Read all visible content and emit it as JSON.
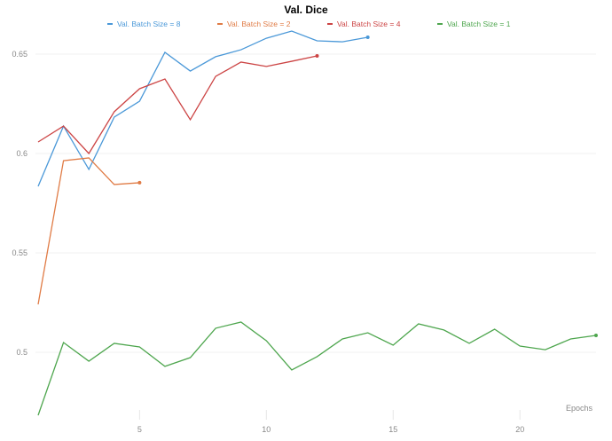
{
  "chart_data": {
    "type": "line",
    "title": "Val. Dice",
    "xlabel": "Epochs",
    "ylabel": "",
    "xlim": [
      1,
      23
    ],
    "ylim": [
      0.468,
      0.665
    ],
    "xticks": [
      5,
      10,
      15,
      20
    ],
    "yticks": [
      0.5,
      0.55,
      0.6,
      0.65
    ],
    "ytick_labels": [
      "0.5",
      "0.55",
      "0.6",
      "0.65"
    ],
    "grid": true,
    "legend_position": "top",
    "series": [
      {
        "name": "Val. Batch Size = 8",
        "color": "#4a98d8",
        "x": [
          1,
          2,
          3,
          4,
          5,
          6,
          7,
          8,
          9,
          10,
          11,
          12,
          13,
          14
        ],
        "values": [
          0.5835,
          0.6138,
          0.592,
          0.6183,
          0.6263,
          0.6509,
          0.6415,
          0.6487,
          0.6522,
          0.658,
          0.6616,
          0.6567,
          0.6562,
          0.6585
        ]
      },
      {
        "name": "Val. Batch Size = 2",
        "color": "#e07b45",
        "x": [
          1,
          2,
          3,
          4,
          5
        ],
        "values": [
          0.5241,
          0.5964,
          0.5978,
          0.5844,
          0.5853
        ]
      },
      {
        "name": "Val. Batch Size = 4",
        "color": "#cc4444",
        "x": [
          1,
          2,
          3,
          4,
          5,
          6,
          7,
          8,
          9,
          10,
          11,
          12
        ],
        "values": [
          0.6058,
          0.6138,
          0.6,
          0.621,
          0.6326,
          0.6375,
          0.617,
          0.6388,
          0.646,
          0.6438,
          0.6464,
          0.6491
        ]
      },
      {
        "name": "Val. Batch Size = 1",
        "color": "#4ea64e",
        "x": [
          1,
          2,
          3,
          4,
          5,
          6,
          7,
          8,
          9,
          10,
          11,
          12,
          13,
          14,
          15,
          16,
          17,
          18,
          19,
          20,
          21,
          22,
          23
        ],
        "values": [
          0.4683,
          0.5049,
          0.4955,
          0.5045,
          0.5027,
          0.4929,
          0.4973,
          0.5121,
          0.5152,
          0.5058,
          0.4911,
          0.4978,
          0.5067,
          0.5098,
          0.5036,
          0.5143,
          0.5112,
          0.5045,
          0.5116,
          0.5031,
          0.5013,
          0.5067,
          0.5085
        ]
      }
    ]
  }
}
